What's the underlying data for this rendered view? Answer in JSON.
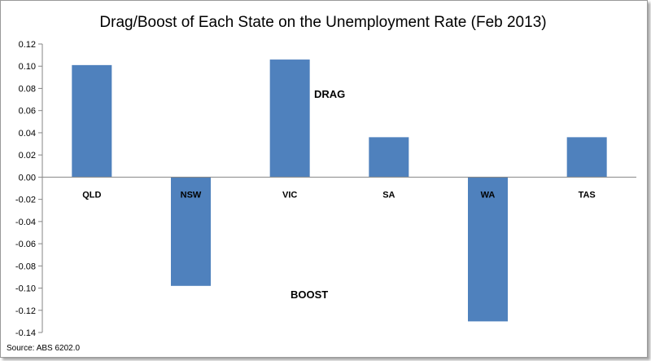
{
  "chart_data": {
    "type": "bar",
    "title": "Drag/Boost of Each State on the Unemployment Rate (Feb 2013)",
    "categories": [
      "QLD",
      "NSW",
      "VIC",
      "SA",
      "WA",
      "TAS"
    ],
    "values": [
      0.101,
      -0.098,
      0.106,
      0.036,
      -0.13,
      0.036
    ],
    "ylim": [
      -0.14,
      0.12
    ],
    "yticks": [
      "0.12",
      "0.10",
      "0.08",
      "0.06",
      "0.04",
      "0.02",
      "0.00",
      "-0.02",
      "-0.04",
      "-0.06",
      "-0.08",
      "-0.10",
      "-0.12",
      "-0.14"
    ],
    "grid": false,
    "bar_color": "#4f81bd",
    "annotations": {
      "drag": "DRAG",
      "boost": "BOOST"
    },
    "source": "Source: ABS 6202.0"
  }
}
